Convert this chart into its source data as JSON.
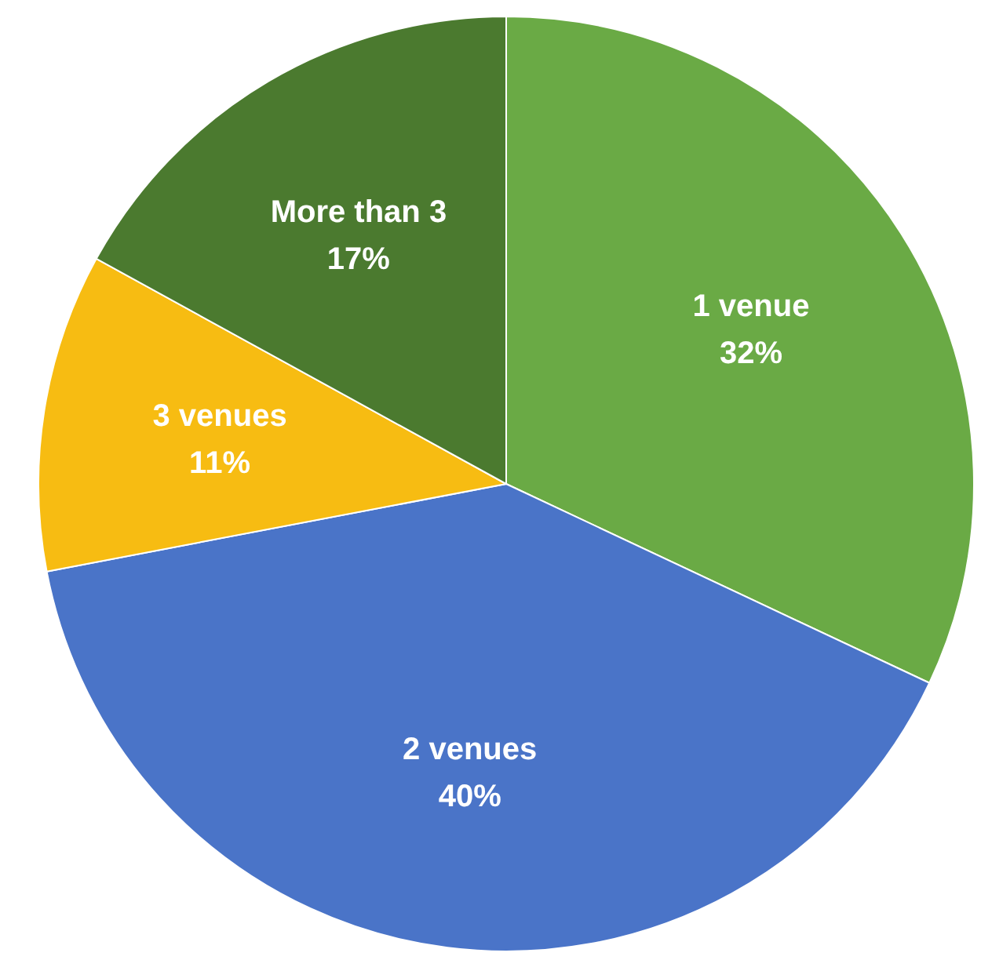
{
  "chart_data": {
    "type": "pie",
    "categories": [
      "1 venue",
      "2 venues",
      "3 venues",
      "More than 3"
    ],
    "values": [
      32,
      40,
      11,
      17
    ],
    "value_labels": [
      "32%",
      "40%",
      "11%",
      "17%"
    ],
    "colors": [
      "#6aaa45",
      "#4a74c8",
      "#f7bc12",
      "#4b7a2f"
    ]
  }
}
